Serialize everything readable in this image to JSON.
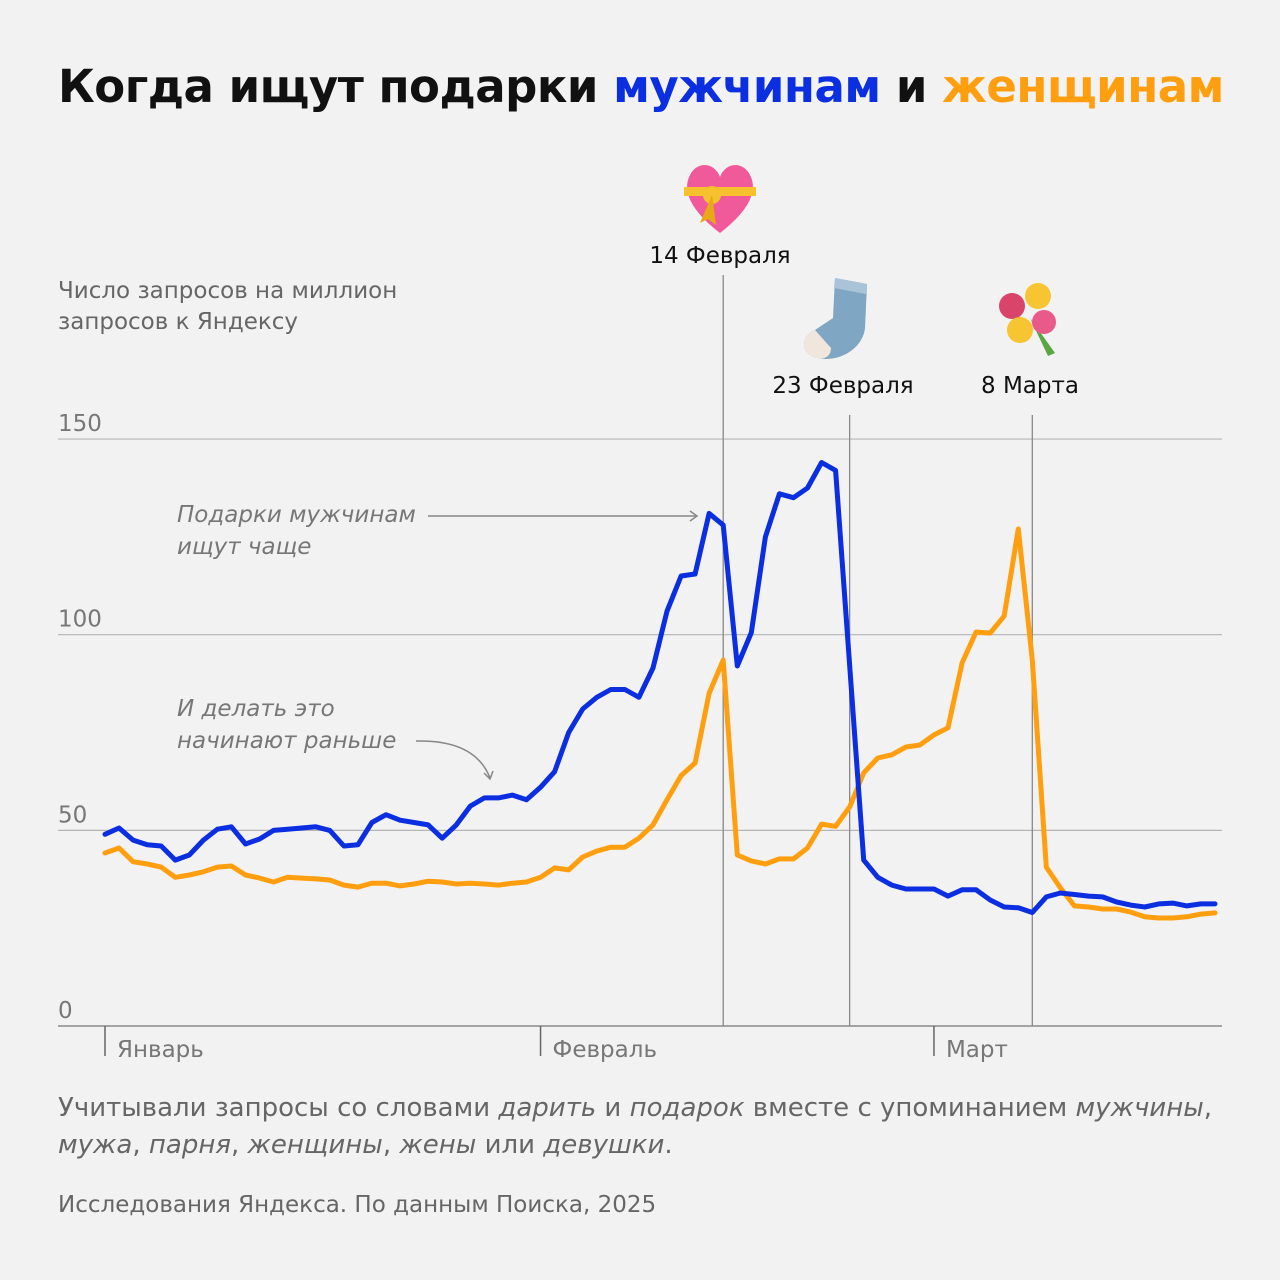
{
  "title": {
    "part1": "Когда ищут подарки ",
    "men": "мужчинам",
    "part2": " и ",
    "women": "женщинам"
  },
  "colors": {
    "men": "#0b2ee0",
    "women": "#ff9f0f",
    "grid": "#b5b5b5",
    "background": "#f2f2f2"
  },
  "chart_data": {
    "type": "line",
    "ylabel": "Число запросов на миллион запросов к Яндексу",
    "ylim": [
      0,
      150
    ],
    "yticks": [
      "0",
      "50",
      "100",
      "150"
    ],
    "grid": true,
    "x_range": [
      "2025-01-01",
      "2025-03-21"
    ],
    "month_ticks": [
      {
        "label": "Январь",
        "date": "2025-01-01"
      },
      {
        "label": "Февраль",
        "date": "2025-02-01"
      },
      {
        "label": "Март",
        "date": "2025-03-01"
      }
    ],
    "events": [
      {
        "label": "14 Февраля",
        "date": "2025-02-14",
        "icon": "heart-with-ribbon-icon"
      },
      {
        "label": "23 Февраля",
        "date": "2025-02-23",
        "icon": "sock-icon"
      },
      {
        "label": "8 Марта",
        "date": "2025-03-08",
        "icon": "bouquet-icon"
      }
    ],
    "annotations": [
      {
        "lines": [
          "Подарки мужчинам",
          "ищут чаще"
        ]
      },
      {
        "lines": [
          "И делать это",
          "начинают раньше"
        ]
      }
    ],
    "x": [
      "2025-01-01",
      "2025-01-02",
      "2025-01-03",
      "2025-01-04",
      "2025-01-05",
      "2025-01-06",
      "2025-01-07",
      "2025-01-08",
      "2025-01-09",
      "2025-01-10",
      "2025-01-11",
      "2025-01-12",
      "2025-01-13",
      "2025-01-14",
      "2025-01-15",
      "2025-01-16",
      "2025-01-17",
      "2025-01-18",
      "2025-01-19",
      "2025-01-20",
      "2025-01-21",
      "2025-01-22",
      "2025-01-23",
      "2025-01-24",
      "2025-01-25",
      "2025-01-26",
      "2025-01-27",
      "2025-01-28",
      "2025-01-29",
      "2025-01-30",
      "2025-01-31",
      "2025-02-01",
      "2025-02-02",
      "2025-02-03",
      "2025-02-04",
      "2025-02-05",
      "2025-02-06",
      "2025-02-07",
      "2025-02-08",
      "2025-02-09",
      "2025-02-10",
      "2025-02-11",
      "2025-02-12",
      "2025-02-13",
      "2025-02-14",
      "2025-02-15",
      "2025-02-16",
      "2025-02-17",
      "2025-02-18",
      "2025-02-19",
      "2025-02-20",
      "2025-02-21",
      "2025-02-22",
      "2025-02-23",
      "2025-02-24",
      "2025-02-25",
      "2025-02-26",
      "2025-02-27",
      "2025-02-28",
      "2025-03-01",
      "2025-03-02",
      "2025-03-03",
      "2025-03-04",
      "2025-03-05",
      "2025-03-06",
      "2025-03-07",
      "2025-03-08",
      "2025-03-09",
      "2025-03-10",
      "2025-03-11",
      "2025-03-12",
      "2025-03-13",
      "2025-03-14",
      "2025-03-15",
      "2025-03-16",
      "2025-03-17",
      "2025-03-18",
      "2025-03-19",
      "2025-03-20",
      "2025-03-21"
    ],
    "series": [
      {
        "key": "men",
        "color": "#0b2ee0",
        "values": [
          49,
          50.6,
          47.5,
          46.3,
          46,
          42.4,
          43.7,
          47.5,
          50.3,
          50.9,
          46.5,
          47.8,
          50,
          50.3,
          50.6,
          50.9,
          50,
          46,
          46.3,
          52,
          54,
          52.6,
          52,
          51.4,
          48,
          51.4,
          56.2,
          58.3,
          58.3,
          59,
          57.8,
          61,
          65,
          75,
          81,
          84,
          86,
          86,
          84,
          91.5,
          106,
          115,
          115.5,
          131,
          128,
          92,
          100.5,
          125,
          136,
          135,
          137.5,
          144,
          142,
          92,
          42.4,
          38,
          36,
          35,
          35,
          35,
          33.2,
          34.8,
          34.8,
          32.2,
          30.4,
          30.2,
          29,
          33,
          34,
          33.6,
          33.2,
          33,
          31.7,
          30.9,
          30.4,
          31.2,
          31.4,
          30.7,
          31.2,
          31.2
        ]
      },
      {
        "key": "women",
        "color": "#ff9f0f",
        "values": [
          44.2,
          45.5,
          42,
          41.4,
          40.6,
          38,
          38.6,
          39.4,
          40.6,
          40.9,
          38.6,
          37.8,
          36.8,
          38,
          37.8,
          37.6,
          37.3,
          36,
          35.5,
          36.5,
          36.5,
          35.8,
          36.3,
          37,
          36.8,
          36.3,
          36.5,
          36.3,
          36,
          36.5,
          36.8,
          38,
          40.4,
          39.9,
          43.2,
          44.7,
          45.7,
          45.7,
          48,
          51.4,
          57.8,
          64,
          67.2,
          85,
          93.5,
          43.7,
          42.2,
          41.4,
          42.7,
          42.7,
          45.5,
          51.6,
          51,
          56,
          64.7,
          68.5,
          69.3,
          71.3,
          71.8,
          74.4,
          76.2,
          92.8,
          100.7,
          100.4,
          104.8,
          127,
          93.5,
          40.6,
          35.3,
          30.7,
          30.4,
          29.9,
          29.9,
          29.1,
          27.9,
          27.6,
          27.6,
          27.9,
          28.6,
          28.9
        ]
      }
    ]
  },
  "note": [
    {
      "t": "Учитывали запросы со словами ",
      "i": false
    },
    {
      "t": "дарить",
      "i": true
    },
    {
      "t": " и ",
      "i": false
    },
    {
      "t": "подарок",
      "i": true
    },
    {
      "t": " вместе с упоминанием ",
      "i": false
    },
    {
      "t": "мужчины",
      "i": true
    },
    {
      "t": ", ",
      "i": false
    },
    {
      "t": "мужа",
      "i": true
    },
    {
      "t": ", ",
      "i": false
    },
    {
      "t": "парня",
      "i": true
    },
    {
      "t": ", ",
      "i": false
    },
    {
      "t": "женщины",
      "i": true
    },
    {
      "t": ", ",
      "i": false
    },
    {
      "t": "жены",
      "i": true
    },
    {
      "t": " или ",
      "i": false
    },
    {
      "t": "девушки",
      "i": true
    },
    {
      "t": ".",
      "i": false
    }
  ],
  "source": "Исследования Яндекса. По данным Поиска, 2025"
}
